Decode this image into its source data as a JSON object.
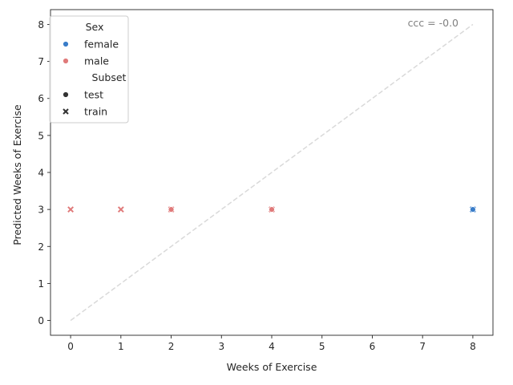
{
  "chart_data": {
    "type": "scatter",
    "title": "",
    "xlabel": "Weeks of Exercise",
    "ylabel": "Predicted Weeks of Exercise",
    "xlim": [
      -0.4,
      8.4
    ],
    "ylim": [
      -0.4,
      8.4
    ],
    "xticks": [
      0,
      1,
      2,
      3,
      4,
      5,
      6,
      7,
      8
    ],
    "yticks": [
      0,
      1,
      2,
      3,
      4,
      5,
      6,
      7,
      8
    ],
    "grid": false,
    "legend_position": "top-left",
    "annotation": "ccc = -0.0",
    "identity_line": {
      "from": [
        0,
        0
      ],
      "to": [
        8,
        8
      ],
      "color": "#d9d9d9",
      "style": "dashed"
    },
    "legend": {
      "hue_title": "Sex",
      "hue_entries": [
        {
          "label": "female",
          "color": "#3a7dc9"
        },
        {
          "label": "male",
          "color": "#e07a7a"
        }
      ],
      "style_title": "Subset",
      "style_entries": [
        {
          "label": "test",
          "marker": "circle"
        },
        {
          "label": "train",
          "marker": "x"
        }
      ]
    },
    "series": [
      {
        "sex": "female",
        "subset": "train",
        "color": "#3a7dc9",
        "marker": "x",
        "points": [
          {
            "x": 8,
            "y": 3
          }
        ]
      },
      {
        "sex": "female",
        "subset": "test",
        "color": "#3a7dc9",
        "marker": "circle",
        "points": [
          {
            "x": 8,
            "y": 3
          }
        ]
      },
      {
        "sex": "male",
        "subset": "train",
        "color": "#e07a7a",
        "marker": "x",
        "points": [
          {
            "x": 0,
            "y": 3
          },
          {
            "x": 1,
            "y": 3
          },
          {
            "x": 2,
            "y": 3
          },
          {
            "x": 4,
            "y": 3
          }
        ]
      },
      {
        "sex": "male",
        "subset": "test",
        "color": "#e07a7a",
        "marker": "circle",
        "points": [
          {
            "x": 2,
            "y": 3
          },
          {
            "x": 4,
            "y": 3
          }
        ]
      }
    ]
  }
}
